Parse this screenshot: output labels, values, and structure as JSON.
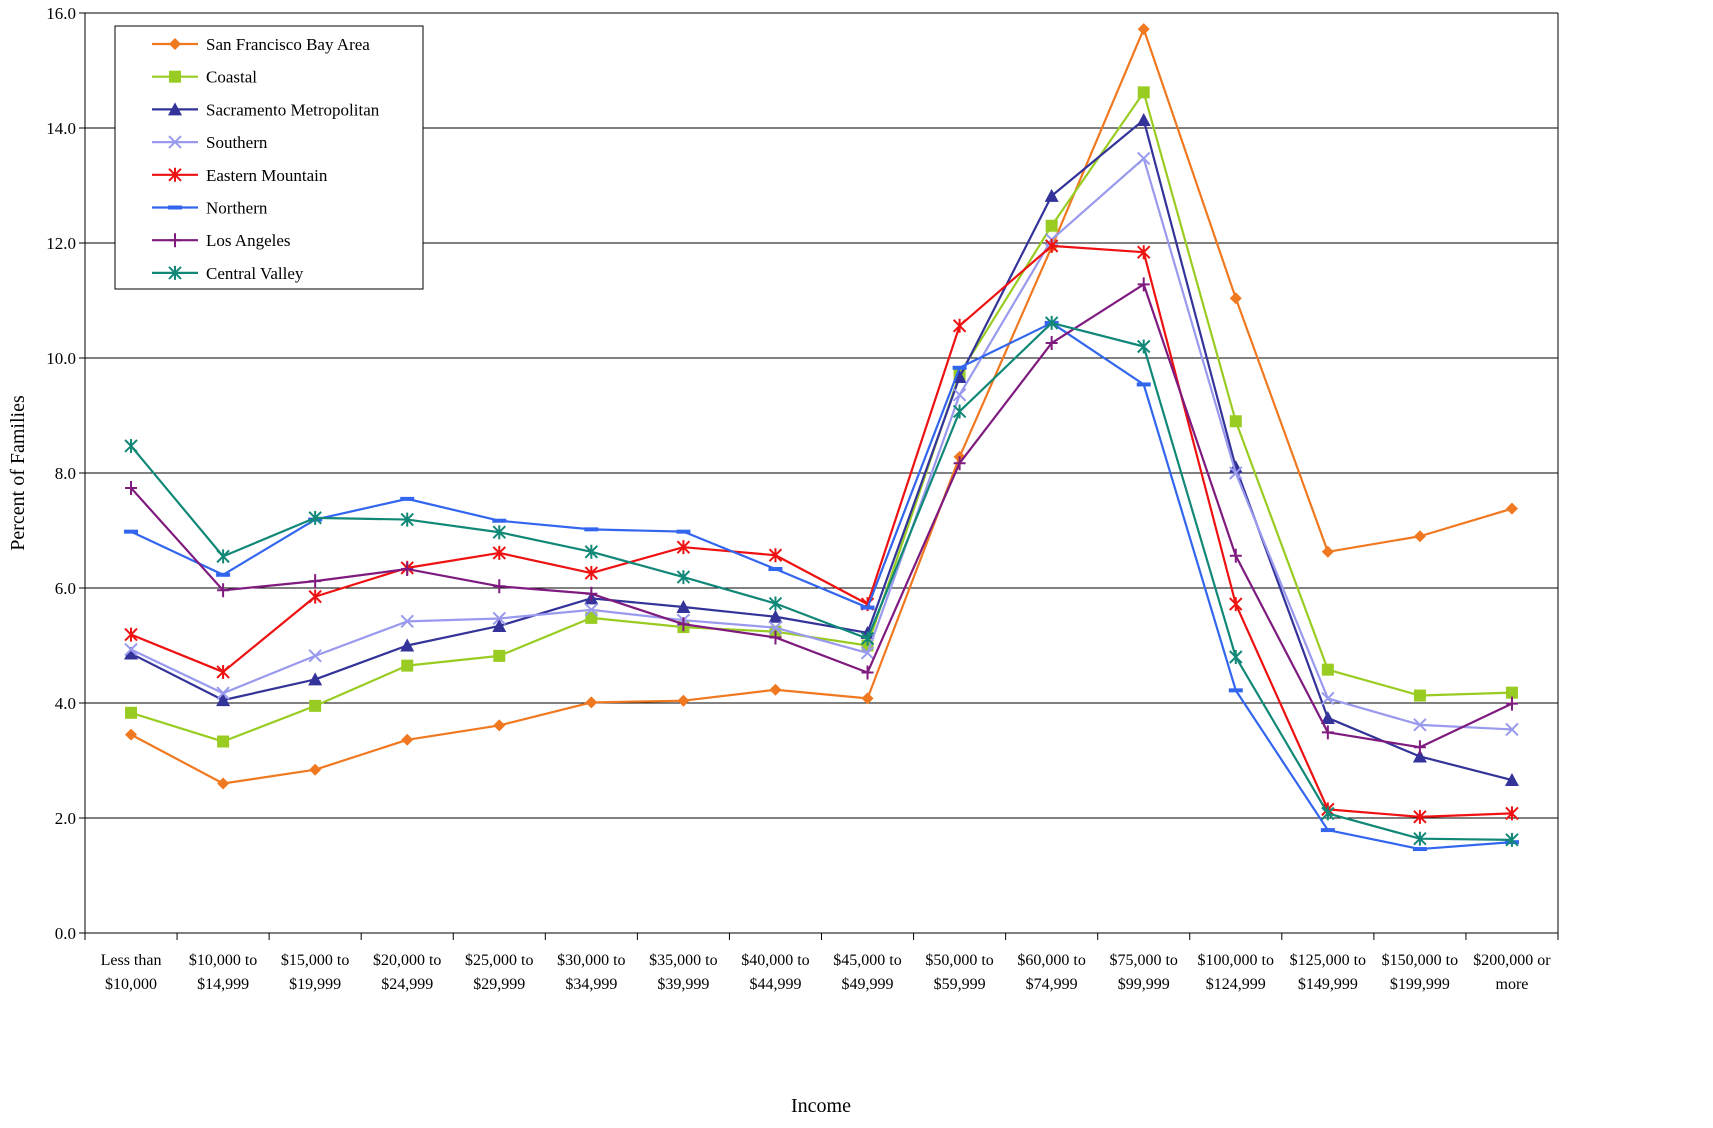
{
  "chart_data": {
    "type": "line",
    "title": "",
    "xlabel": "Income",
    "ylabel": "Percent of Families",
    "ylim": [
      0,
      16
    ],
    "yticks": [
      "0.0",
      "2.0",
      "4.0",
      "6.0",
      "8.0",
      "10.0",
      "12.0",
      "14.0",
      "16.0"
    ],
    "grid": true,
    "legend_position": "top-left",
    "categories": [
      [
        "Less than",
        "$10,000"
      ],
      [
        "$10,000 to",
        "$14,999"
      ],
      [
        "$15,000 to",
        "$19,999"
      ],
      [
        "$20,000 to",
        "$24,999"
      ],
      [
        "$25,000 to",
        "$29,999"
      ],
      [
        "$30,000 to",
        "$34,999"
      ],
      [
        "$35,000 to",
        "$39,999"
      ],
      [
        "$40,000 to",
        "$44,999"
      ],
      [
        "$45,000 to",
        "$49,999"
      ],
      [
        "$50,000 to",
        "$59,999"
      ],
      [
        "$60,000 to",
        "$74,999"
      ],
      [
        "$75,000 to",
        "$99,999"
      ],
      [
        "$100,000 to",
        "$124,999"
      ],
      [
        "$125,000 to",
        "$149,999"
      ],
      [
        "$150,000 to",
        "$199,999"
      ],
      [
        "$200,000 or",
        "more"
      ]
    ],
    "series": [
      {
        "name": "San Francisco Bay Area",
        "color": "#F07820",
        "marker": "diamond",
        "values": [
          3.45,
          2.6,
          2.84,
          3.36,
          3.61,
          4.01,
          4.04,
          4.23,
          4.08,
          8.28,
          11.93,
          15.72,
          11.04,
          6.63,
          6.9,
          7.38
        ]
      },
      {
        "name": "Coastal",
        "color": "#99CC22",
        "marker": "square",
        "values": [
          3.83,
          3.33,
          3.95,
          4.65,
          4.82,
          5.48,
          5.32,
          5.24,
          5.0,
          9.72,
          12.3,
          14.62,
          8.9,
          4.58,
          4.13,
          4.18
        ]
      },
      {
        "name": "Sacramento Metropolitan",
        "color": "#333399",
        "marker": "triangle",
        "values": [
          4.86,
          4.05,
          4.41,
          5.0,
          5.34,
          5.82,
          5.67,
          5.5,
          5.22,
          9.67,
          12.82,
          14.14,
          8.1,
          3.74,
          3.07,
          2.66
        ]
      },
      {
        "name": "Southern",
        "color": "#9999EE",
        "marker": "x",
        "values": [
          4.93,
          4.17,
          4.82,
          5.42,
          5.47,
          5.62,
          5.44,
          5.31,
          4.87,
          9.36,
          12.06,
          13.47,
          8.0,
          4.08,
          3.62,
          3.54
        ]
      },
      {
        "name": "Eastern Mountain",
        "color": "#EE1111",
        "marker": "asterisk",
        "values": [
          5.19,
          4.54,
          5.85,
          6.35,
          6.61,
          6.26,
          6.71,
          6.57,
          5.72,
          10.56,
          11.95,
          11.84,
          5.72,
          2.15,
          2.02,
          2.08
        ]
      },
      {
        "name": "Northern",
        "color": "#3366EE",
        "marker": "dash",
        "values": [
          6.98,
          6.23,
          7.19,
          7.55,
          7.17,
          7.02,
          6.98,
          6.33,
          5.66,
          9.83,
          10.61,
          9.54,
          4.22,
          1.79,
          1.46,
          1.58
        ]
      },
      {
        "name": "Los Angeles",
        "color": "#7F1A7F",
        "marker": "plus",
        "values": [
          7.74,
          5.96,
          6.12,
          6.33,
          6.03,
          5.9,
          5.37,
          5.14,
          4.53,
          8.17,
          10.26,
          11.28,
          6.56,
          3.49,
          3.23,
          3.99
        ]
      },
      {
        "name": "Central Valley",
        "color": "#118877",
        "marker": "star",
        "values": [
          8.47,
          6.55,
          7.22,
          7.19,
          6.97,
          6.63,
          6.19,
          5.73,
          5.12,
          9.07,
          10.61,
          10.2,
          4.8,
          2.08,
          1.64,
          1.62
        ]
      }
    ]
  }
}
